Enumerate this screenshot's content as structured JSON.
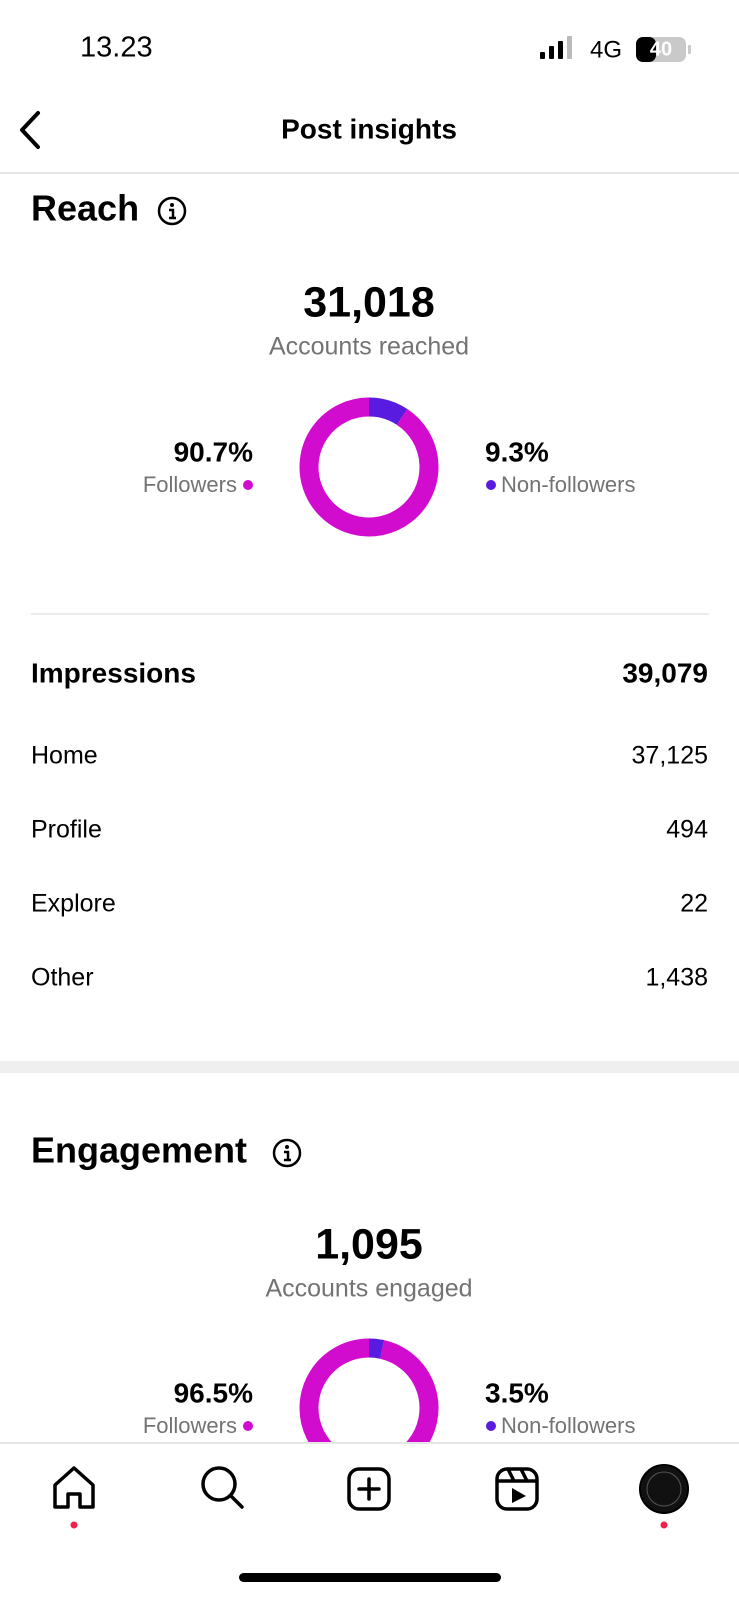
{
  "status_bar": {
    "time": "13.23",
    "network": "4G",
    "battery": "40"
  },
  "header": {
    "title": "Post insights"
  },
  "reach": {
    "title": "Reach",
    "total": "31,018",
    "total_label": "Accounts reached",
    "type": "donut",
    "segments": [
      {
        "name": "Followers",
        "value": 90.7,
        "value_label": "90.7%",
        "color": "#d10ccf"
      },
      {
        "name": "Non-followers",
        "value": 9.3,
        "value_label": "9.3%",
        "color": "#5a1be0"
      }
    ]
  },
  "impressions": {
    "title": "Impressions",
    "total": "39,079",
    "rows": [
      [
        "Home",
        "37,125"
      ],
      [
        "Profile",
        "494"
      ],
      [
        "Explore",
        "22"
      ],
      [
        "Other",
        "1,438"
      ]
    ]
  },
  "engagement": {
    "title": "Engagement",
    "total": "1,095",
    "total_label": "Accounts engaged",
    "type": "donut",
    "segments": [
      {
        "name": "Followers",
        "value": 96.5,
        "value_label": "96.5%",
        "color": "#d10ccf"
      },
      {
        "name": "Non-followers",
        "value": 3.5,
        "value_label": "3.5%",
        "color": "#5a1be0"
      }
    ]
  }
}
